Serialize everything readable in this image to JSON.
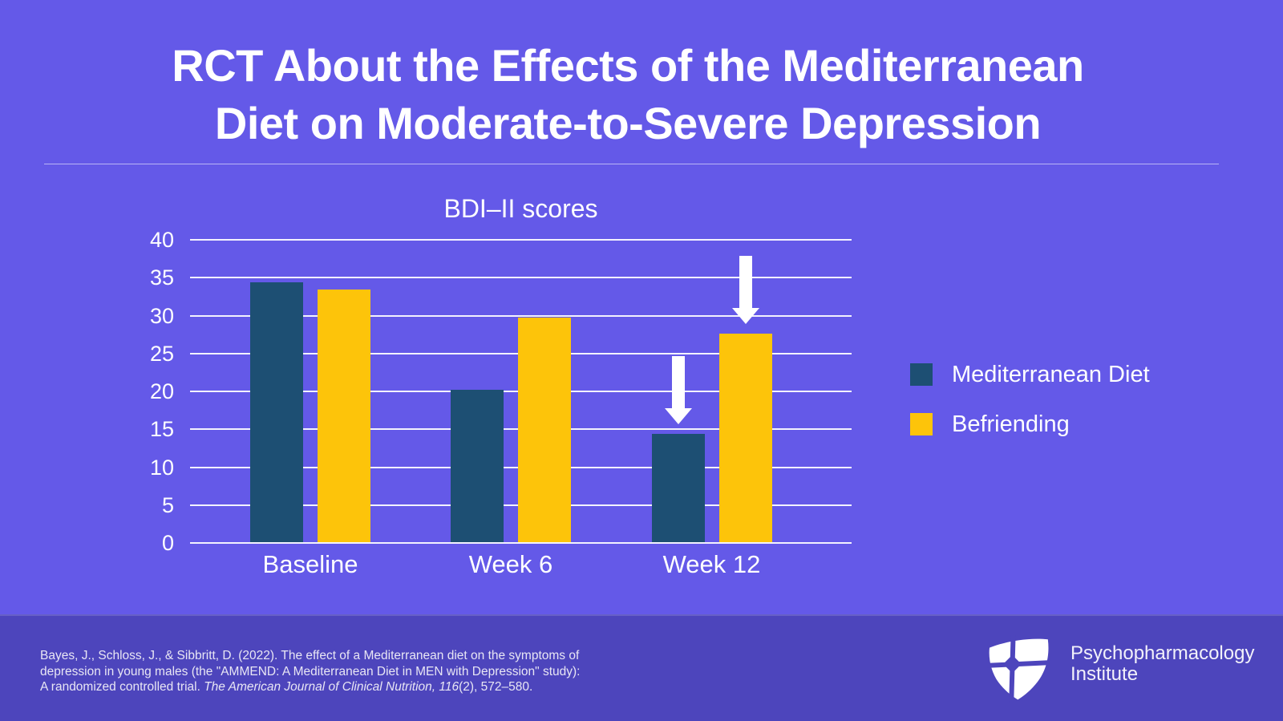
{
  "title_lines": [
    "RCT About the Effects of the Mediterranean",
    "Diet on Moderate-to-Severe Depression"
  ],
  "chart_data": {
    "type": "bar",
    "title": "BDI–II scores",
    "categories": [
      "Baseline",
      "Week 6",
      "Week 12"
    ],
    "series": [
      {
        "name": "Mediterranean Diet",
        "color": "#1D4F73",
        "values": [
          34.3,
          20.1,
          14.3
        ]
      },
      {
        "name": "Befriending",
        "color": "#FDC40A",
        "values": [
          33.3,
          29.6,
          27.5
        ]
      }
    ],
    "ylabel": "",
    "xlabel": "",
    "ylim": [
      0,
      40
    ],
    "ytick_step": 5,
    "grid": true,
    "legend_position": "right",
    "annotations": [
      {
        "type": "down-arrow",
        "category": "Week 12",
        "series": "Mediterranean Diet"
      },
      {
        "type": "down-arrow",
        "category": "Week 12",
        "series": "Befriending"
      }
    ]
  },
  "footer": {
    "citation_line1": "Bayes, J., Schloss, J., & Sibbritt, D. (2022). The effect of a Mediterranean diet on the symptoms of",
    "citation_line2": "depression in young males (the \"AMMEND: A Mediterranean Diet in MEN with Depression\" study):",
    "citation_line3_pre": "A randomized controlled trial. ",
    "citation_line3_italic": "The American Journal of Clinical Nutrition, 116",
    "citation_line3_post": "(2), 572–580.",
    "logo_line1": "Psychopharmacology",
    "logo_line2": "Institute"
  },
  "colors": {
    "background": "#6459E8",
    "footer_background": "#4D45BC",
    "bar_mediterranean": "#1D4F73",
    "bar_befriending": "#FDC40A",
    "text": "#FFFFFF"
  }
}
